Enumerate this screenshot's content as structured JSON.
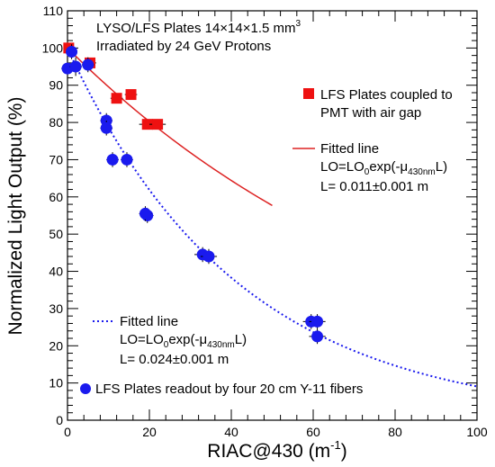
{
  "chart_data": {
    "type": "scatter",
    "title": "",
    "xlabel": "RIAC@430 (m",
    "xlabel_sup": "-1",
    "xlabel_close": ")",
    "ylabel": "Normalized Light Output (%)",
    "xlim": [
      0,
      100
    ],
    "ylim": [
      0,
      110
    ],
    "x_ticks": [
      "0",
      "20",
      "40",
      "60",
      "80",
      "100"
    ],
    "y_ticks": [
      "0",
      "10",
      "20",
      "30",
      "40",
      "50",
      "60",
      "70",
      "80",
      "90",
      "100",
      "110"
    ],
    "grid": false,
    "annotations": {
      "header_line1": "LYSO/LFS Plates 14×14×1.5 mm",
      "header_line1_sup": "3",
      "header_line2": "Irradiated by 24 GeV Protons",
      "red_legend_line1": "LFS Plates coupled to",
      "red_legend_line2": "PMT with air gap",
      "red_fit_label": "Fitted line",
      "red_fit_formula_a": "LO=LO",
      "red_fit_formula_sub0": "0",
      "red_fit_formula_b": "exp(-μ",
      "red_fit_formula_sub1": "430nm",
      "red_fit_formula_c": "L)",
      "red_fit_value": "L= 0.011±0.001 m",
      "blue_fit_label": "Fitted line",
      "blue_fit_formula_a": "LO=LO",
      "blue_fit_formula_sub0": "0",
      "blue_fit_formula_b": "exp(-μ",
      "blue_fit_formula_sub1": "430nm",
      "blue_fit_formula_c": "L)",
      "blue_fit_value": "L= 0.024±0.001 m",
      "blue_legend": "LFS Plates readout by four 20 cm Y-11 fibers"
    },
    "series": [
      {
        "name": "LFS Plates coupled to PMT with air gap",
        "color": "#ee1111",
        "marker": "square",
        "points": [
          {
            "x": 0.3,
            "y": 100,
            "xerr": 1.3
          },
          {
            "x": 5.5,
            "y": 96,
            "xerr": 1.5
          },
          {
            "x": 12,
            "y": 86.5,
            "xerr": 1.5
          },
          {
            "x": 15.5,
            "y": 87.5,
            "xerr": 1.5
          },
          {
            "x": 19.5,
            "y": 79.5,
            "xerr": 2.0
          },
          {
            "x": 22,
            "y": 79.5,
            "xerr": 2.0
          }
        ]
      },
      {
        "name": "LFS Plates readout by four 20 cm Y-11 fibers",
        "color": "#1a1aee",
        "marker": "circle",
        "points": [
          {
            "x": 0,
            "y": 94.5,
            "xerr": 1.5,
            "yerr": 2.5
          },
          {
            "x": 2,
            "y": 95,
            "xerr": 1.5,
            "yerr": 2.5
          },
          {
            "x": 1,
            "y": 99,
            "xerr": 1.0,
            "yerr": 2.0
          },
          {
            "x": 5,
            "y": 95.5,
            "xerr": 1.5,
            "yerr": 2.0
          },
          {
            "x": 9.5,
            "y": 80.5,
            "xerr": 1.5,
            "yerr": 2.0
          },
          {
            "x": 9.5,
            "y": 78.5,
            "xerr": 1.5,
            "yerr": 2.0
          },
          {
            "x": 11,
            "y": 70,
            "xerr": 1.5,
            "yerr": 2.0
          },
          {
            "x": 14.5,
            "y": 70,
            "xerr": 1.5,
            "yerr": 2.0
          },
          {
            "x": 19.5,
            "y": 55,
            "xerr": 1.5,
            "yerr": 2.0
          },
          {
            "x": 19,
            "y": 55.5,
            "xerr": 1.5,
            "yerr": 2.0
          },
          {
            "x": 33,
            "y": 44.5,
            "xerr": 2.0,
            "yerr": 2.0
          },
          {
            "x": 34.5,
            "y": 44,
            "xerr": 2.0,
            "yerr": 2.0
          },
          {
            "x": 59.5,
            "y": 26.5,
            "xerr": 2.0,
            "yerr": 2.0
          },
          {
            "x": 61,
            "y": 26.5,
            "xerr": 2.0,
            "yerr": 2.0
          },
          {
            "x": 61,
            "y": 22.5,
            "xerr": 2.0,
            "yerr": 2.0
          }
        ]
      }
    ],
    "fits": [
      {
        "name": "red fit",
        "color": "#dd2222",
        "style": "solid",
        "L": 0.011,
        "x_range": [
          0,
          50
        ]
      },
      {
        "name": "blue fit",
        "color": "#1a1aee",
        "style": "dotted",
        "L": 0.024,
        "x_range": [
          0,
          100
        ]
      }
    ]
  }
}
